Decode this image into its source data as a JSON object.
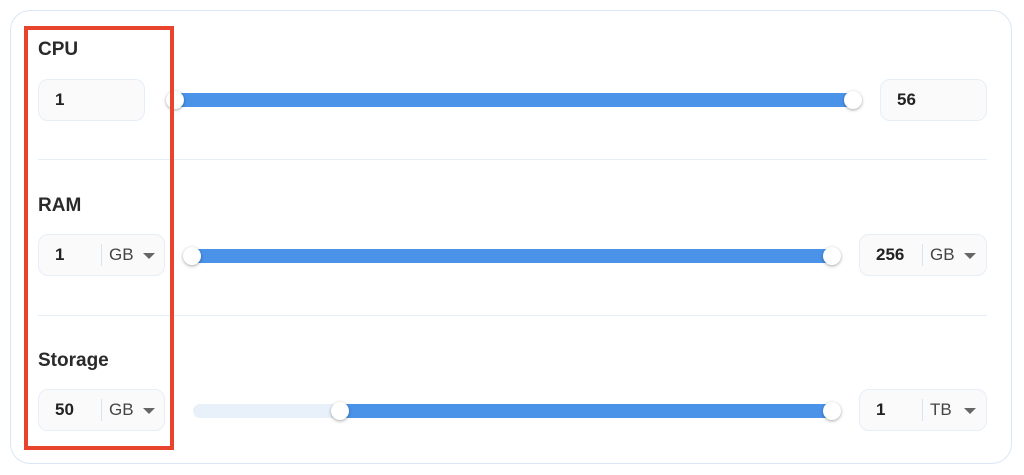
{
  "cpu": {
    "label": "CPU",
    "min_value": "1",
    "max_value": "56",
    "range_low_fraction": 0,
    "range_high_fraction": 1
  },
  "ram": {
    "label": "RAM",
    "min_value": "1",
    "min_unit": "GB",
    "max_value": "256",
    "max_unit": "GB",
    "range_low_fraction": 0,
    "range_high_fraction": 1
  },
  "storage": {
    "label": "Storage",
    "min_value": "50",
    "min_unit": "GB",
    "max_value": "1",
    "max_unit": "TB",
    "range_low_fraction": 0.23,
    "range_high_fraction": 1
  },
  "colors": {
    "accent": "#4a93e8",
    "highlight": "#e8432d",
    "track": "#e8f0fa"
  }
}
